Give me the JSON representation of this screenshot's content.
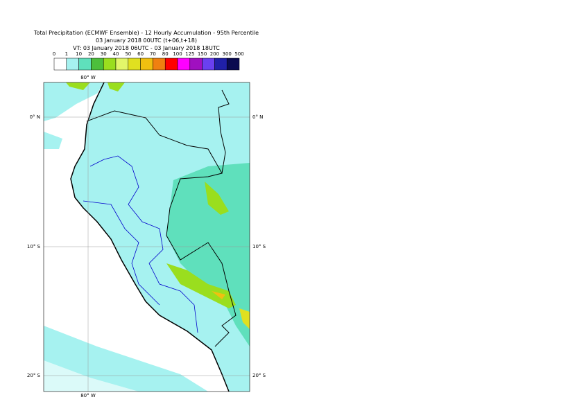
{
  "header": {
    "title": "Total Precipitation (ECMWF Ensemble) - 12 Hourly Accumulation - 95th Percentile",
    "run": "03 January 2018 00UTC (t+06,t+18)",
    "valid": "VT: 03 January 2018 06UTC - 03 January 2018 18UTC"
  },
  "legend": {
    "bounds": [
      0,
      1,
      10,
      20,
      30,
      40,
      50,
      60,
      70,
      80,
      100,
      125,
      150,
      200,
      300,
      500
    ],
    "colors": [
      "#ffffff",
      "#a6f2f0",
      "#5fe0bc",
      "#4cbf3c",
      "#9ade1e",
      "#e2f66a",
      "#e0e020",
      "#f0c010",
      "#f08010",
      "#ff0000",
      "#ff00ff",
      "#a010c0",
      "#6a40f0",
      "#2020a8",
      "#0a0a50"
    ]
  },
  "map": {
    "lon_labels": [
      "80° W",
      "80° W"
    ],
    "lat_labels": [
      "0° N",
      "10° S",
      "20° S"
    ]
  }
}
